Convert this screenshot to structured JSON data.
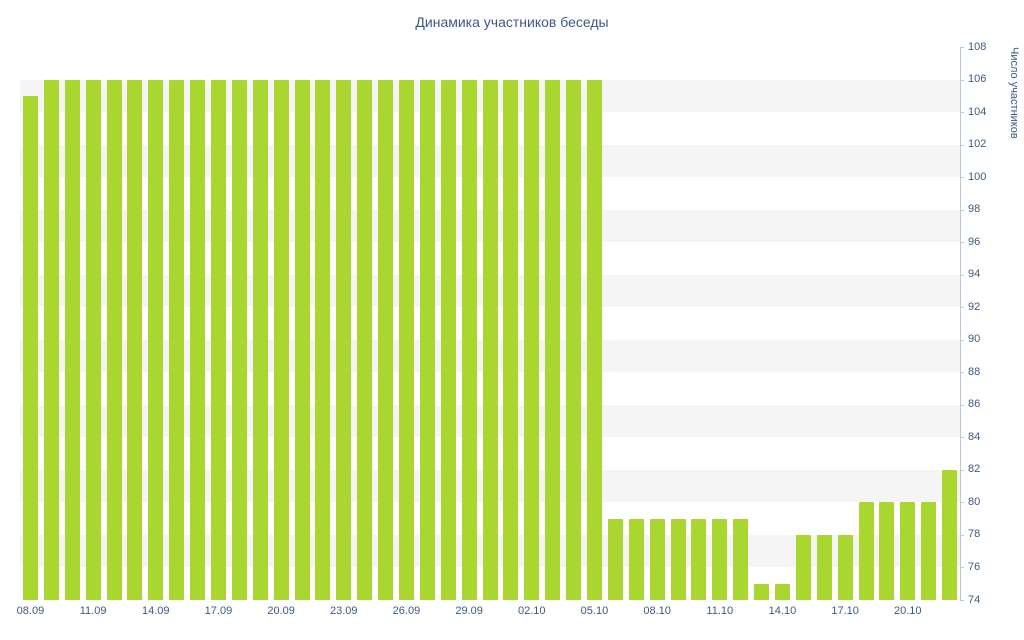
{
  "chart": {
    "title": "Динамика участников беседы",
    "y_axis_title": "Число участников",
    "bar_color": "#a9d62f",
    "band_color": "#f5f5f5",
    "text_color": "#3b5a80",
    "axis_line_color": "#b9c6d8"
  },
  "chart_data": {
    "type": "bar",
    "title": "Динамика участников беседы",
    "xlabel": "",
    "ylabel": "Число участников",
    "ylim": [
      74,
      108
    ],
    "ytick_step": 2,
    "grid": "alternating-horizontal-bands",
    "legend": "none",
    "x_tick_labels": [
      "08.09",
      "11.09",
      "14.09",
      "17.09",
      "20.09",
      "23.09",
      "26.09",
      "29.09",
      "02.10",
      "05.10",
      "08.10",
      "11.10",
      "14.10",
      "17.10",
      "20.10"
    ],
    "x_tick_every": 3,
    "categories": [
      "08.09",
      "09.09",
      "10.09",
      "11.09",
      "12.09",
      "13.09",
      "14.09",
      "15.09",
      "16.09",
      "17.09",
      "18.09",
      "19.09",
      "20.09",
      "21.09",
      "22.09",
      "23.09",
      "24.09",
      "25.09",
      "26.09",
      "27.09",
      "28.09",
      "29.09",
      "30.09",
      "01.10",
      "02.10",
      "03.10",
      "04.10",
      "05.10",
      "06.10",
      "07.10",
      "08.10",
      "09.10",
      "10.10",
      "11.10",
      "12.10",
      "13.10",
      "14.10",
      "15.10",
      "16.10",
      "17.10",
      "18.10",
      "19.10",
      "20.10",
      "21.10",
      "22.10"
    ],
    "values": [
      105,
      106,
      106,
      106,
      106,
      106,
      106,
      106,
      106,
      106,
      106,
      106,
      106,
      106,
      106,
      106,
      106,
      106,
      106,
      106,
      106,
      106,
      106,
      106,
      106,
      106,
      106,
      106,
      79,
      79,
      79,
      79,
      79,
      79,
      79,
      75,
      75,
      78,
      78,
      78,
      80,
      80,
      80,
      80,
      82
    ]
  }
}
